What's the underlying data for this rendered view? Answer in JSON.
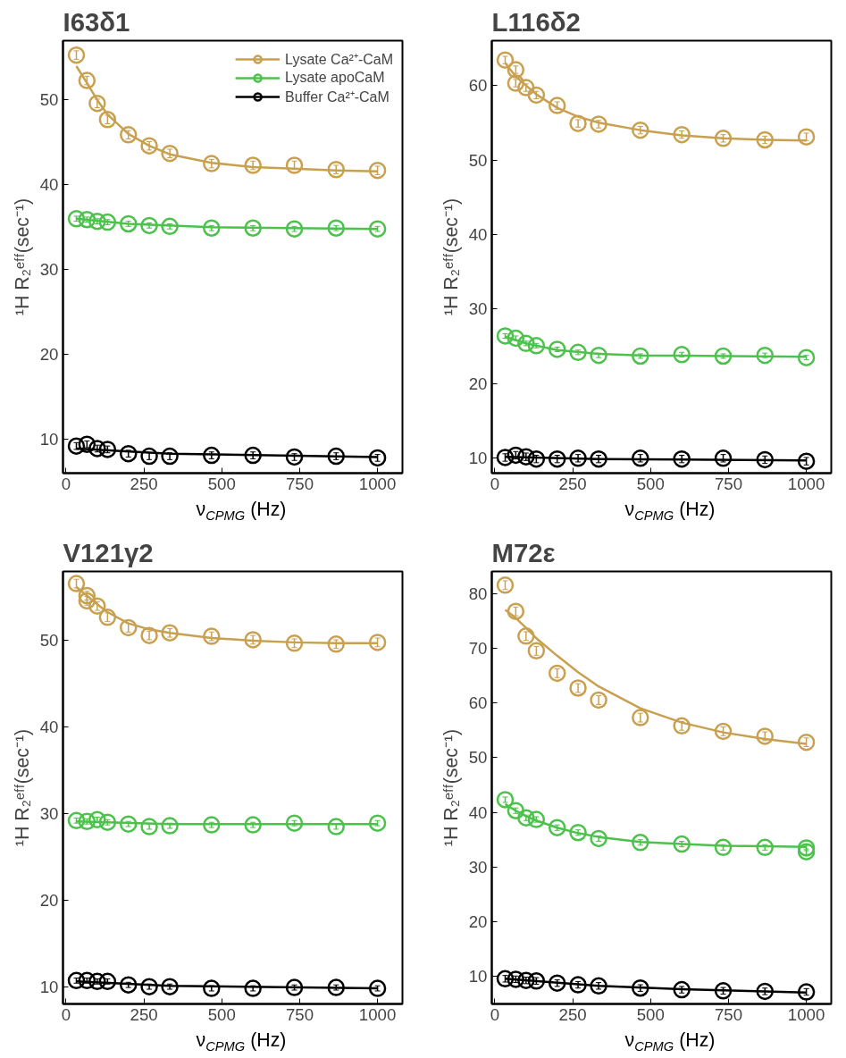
{
  "chart_data": [
    {
      "type": "scatter",
      "title": "I63δ1",
      "xlabel": "ν$_{CPMG}$ (Hz)",
      "ylabel": "¹H R₂ᵉᶠᶠ(sec⁻¹)",
      "xlim": [
        -10,
        1080
      ],
      "xticks": [
        0,
        250,
        500,
        750,
        1000
      ],
      "ylim": [
        6,
        57
      ],
      "yticks": [
        10,
        20,
        30,
        40,
        50
      ],
      "grid": false,
      "legend": "top right",
      "marker": "circle",
      "series": [
        {
          "name": "Lysate Ca²⁺-CaM",
          "color": "#c8a050",
          "x": [
            33,
            67,
            100,
            133,
            200,
            267,
            333,
            467,
            600,
            733,
            867,
            1000
          ],
          "values": [
            55.3,
            52.3,
            49.6,
            47.7,
            45.9,
            44.6,
            43.7,
            42.5,
            42.3,
            42.3,
            41.8,
            41.7
          ],
          "errors": [
            0.5,
            0.5,
            0.5,
            0.5,
            0.5,
            0.5,
            0.5,
            0.5,
            0.5,
            0.5,
            0.5,
            0.5
          ]
        },
        {
          "name": "Lysate apoCaM",
          "color": "#4cc24c",
          "x": [
            33,
            67,
            100,
            133,
            200,
            267,
            333,
            467,
            600,
            733,
            867,
            1000
          ],
          "values": [
            36.0,
            35.9,
            35.7,
            35.6,
            35.4,
            35.2,
            35.1,
            34.9,
            34.9,
            34.8,
            34.9,
            34.8
          ],
          "errors": [
            0.3,
            0.3,
            0.3,
            0.3,
            0.3,
            0.3,
            0.3,
            0.3,
            0.3,
            0.3,
            0.3,
            0.3
          ]
        },
        {
          "name": "Buffer Ca²⁺-CaM",
          "color": "#000000",
          "x": [
            33,
            67,
            100,
            133,
            200,
            267,
            333,
            467,
            600,
            733,
            867,
            1000
          ],
          "values": [
            9.2,
            9.4,
            8.9,
            8.8,
            8.3,
            8.0,
            8.0,
            8.1,
            8.1,
            7.9,
            8.0,
            7.8
          ],
          "errors": [
            0.4,
            0.4,
            0.4,
            0.4,
            0.4,
            0.4,
            0.4,
            0.4,
            0.4,
            0.4,
            0.4,
            0.4
          ]
        },
        {
          "type": "line",
          "marker": "none",
          "color": "#c8a050",
          "x": [
            33,
            67,
            100,
            133,
            200,
            267,
            333,
            467,
            600,
            733,
            867,
            1000
          ],
          "values": [
            54,
            52,
            50,
            48.3,
            46,
            44.6,
            43.6,
            42.6,
            42.1,
            41.9,
            41.7,
            41.6
          ]
        },
        {
          "type": "line",
          "marker": "none",
          "color": "#4cc24c",
          "x": [
            33,
            200,
            467,
            1000
          ],
          "values": [
            36.0,
            35.4,
            35.0,
            34.8
          ]
        },
        {
          "type": "line",
          "marker": "none",
          "color": "#000000",
          "x": [
            33,
            333,
            1000
          ],
          "values": [
            8.9,
            8.3,
            7.9
          ]
        }
      ]
    },
    {
      "type": "scatter",
      "title": "L116δ2",
      "xlabel": "ν$_{CPMG}$ (Hz)",
      "ylabel": "¹H R₂ᵉᶠᶠ(sec⁻¹)",
      "xlim": [
        -10,
        1080
      ],
      "xticks": [
        0,
        250,
        500,
        750,
        1000
      ],
      "ylim": [
        8,
        66
      ],
      "yticks": [
        10,
        20,
        30,
        40,
        50,
        60
      ],
      "grid": false,
      "marker": "circle",
      "series": [
        {
          "color": "#c8a050",
          "x": [
            33,
            67,
            67,
            100,
            133,
            200,
            267,
            333,
            467,
            600,
            733,
            867,
            1000
          ],
          "values": [
            63.4,
            62.1,
            60.3,
            59.7,
            58.7,
            57.3,
            54.9,
            54.8,
            54.0,
            53.4,
            52.9,
            52.7,
            53.1
          ],
          "errors": [
            0.5,
            0.5,
            0.5,
            0.5,
            0.5,
            0.5,
            0.5,
            0.5,
            0.5,
            0.5,
            0.5,
            0.5,
            0.5
          ]
        },
        {
          "color": "#4cc24c",
          "x": [
            33,
            67,
            100,
            133,
            200,
            267,
            333,
            467,
            600,
            733,
            867,
            1000
          ],
          "values": [
            26.4,
            26.1,
            25.4,
            25.1,
            24.6,
            24.2,
            23.8,
            23.7,
            23.9,
            23.7,
            23.8,
            23.5
          ],
          "errors": [
            0.3,
            0.3,
            0.3,
            0.3,
            0.3,
            0.3,
            0.3,
            0.3,
            0.3,
            0.3,
            0.3,
            0.3
          ]
        },
        {
          "color": "#000000",
          "x": [
            33,
            67,
            100,
            133,
            200,
            267,
            333,
            467,
            600,
            733,
            867,
            1000
          ],
          "values": [
            10.1,
            10.4,
            10.2,
            9.9,
            9.9,
            10.0,
            9.9,
            10.0,
            9.9,
            10.0,
            9.8,
            9.6
          ],
          "errors": [
            0.5,
            0.5,
            0.5,
            0.5,
            0.5,
            0.5,
            0.5,
            0.5,
            0.5,
            0.5,
            0.5,
            0.5
          ]
        },
        {
          "type": "line",
          "marker": "none",
          "color": "#c8a050",
          "x": [
            33,
            67,
            100,
            133,
            200,
            267,
            333,
            467,
            600,
            733,
            867,
            1000
          ],
          "values": [
            63,
            61.2,
            60,
            58.8,
            57,
            55.8,
            55,
            54,
            53.3,
            52.9,
            52.7,
            52.6
          ]
        },
        {
          "type": "line",
          "marker": "none",
          "color": "#4cc24c",
          "x": [
            33,
            100,
            200,
            333,
            467,
            1000
          ],
          "values": [
            26.3,
            25.4,
            24.5,
            24.0,
            23.8,
            23.6
          ]
        },
        {
          "type": "line",
          "marker": "none",
          "color": "#000000",
          "x": [
            33,
            333,
            1000
          ],
          "values": [
            10.2,
            9.9,
            9.7
          ]
        }
      ]
    },
    {
      "type": "scatter",
      "title": "V121γ2",
      "xlabel": "ν$_{CPMG}$ (Hz)",
      "ylabel": "¹H R₂ᵉᶠᶠ(sec⁻¹)",
      "xlim": [
        -10,
        1080
      ],
      "xticks": [
        0,
        250,
        500,
        750,
        1000
      ],
      "ylim": [
        8,
        58
      ],
      "yticks": [
        10,
        20,
        30,
        40,
        50
      ],
      "grid": false,
      "marker": "circle",
      "series": [
        {
          "color": "#c8a050",
          "x": [
            33,
            67,
            67,
            100,
            133,
            200,
            267,
            333,
            467,
            600,
            733,
            867,
            1000
          ],
          "values": [
            56.6,
            55.2,
            54.6,
            54.0,
            52.7,
            51.5,
            50.6,
            50.9,
            50.5,
            50.1,
            49.7,
            49.6,
            49.8
          ],
          "errors": [
            0.5,
            0.5,
            0.5,
            0.5,
            0.5,
            0.5,
            0.5,
            0.5,
            0.5,
            0.5,
            0.5,
            0.5,
            0.5
          ]
        },
        {
          "color": "#4cc24c",
          "x": [
            33,
            67,
            100,
            133,
            200,
            267,
            333,
            467,
            600,
            733,
            867,
            1000
          ],
          "values": [
            29.2,
            29.1,
            29.3,
            29.0,
            28.8,
            28.5,
            28.6,
            28.7,
            28.7,
            28.9,
            28.5,
            28.9
          ],
          "errors": [
            0.3,
            0.3,
            0.3,
            0.3,
            0.3,
            0.3,
            0.3,
            0.3,
            0.3,
            0.3,
            0.3,
            0.3
          ]
        },
        {
          "color": "#000000",
          "x": [
            33,
            67,
            100,
            133,
            200,
            267,
            333,
            467,
            600,
            733,
            867,
            1000
          ],
          "values": [
            10.7,
            10.7,
            10.6,
            10.6,
            10.2,
            10.0,
            10.0,
            9.8,
            9.8,
            9.9,
            9.9,
            9.8
          ],
          "errors": [
            0.3,
            0.3,
            0.3,
            0.3,
            0.3,
            0.3,
            0.3,
            0.3,
            0.3,
            0.3,
            0.3,
            0.3
          ]
        },
        {
          "type": "line",
          "marker": "none",
          "color": "#c8a050",
          "x": [
            33,
            67,
            100,
            133,
            200,
            267,
            333,
            467,
            600,
            733,
            867,
            1000
          ],
          "values": [
            56.2,
            55.2,
            54.2,
            53.3,
            52.0,
            51.3,
            50.9,
            50.3,
            50.0,
            49.8,
            49.7,
            49.7
          ]
        },
        {
          "type": "line",
          "marker": "none",
          "color": "#4cc24c",
          "x": [
            33,
            333,
            1000
          ],
          "values": [
            29.1,
            28.8,
            28.8
          ]
        },
        {
          "type": "line",
          "marker": "none",
          "color": "#000000",
          "x": [
            33,
            333,
            1000
          ],
          "values": [
            10.6,
            10.1,
            9.8
          ]
        }
      ]
    },
    {
      "type": "scatter",
      "title": "M72ε",
      "xlabel": "ν$_{CPMG}$ (Hz)",
      "ylabel": "¹H R₂ᵉᶠᶠ(sec⁻¹)",
      "xlim": [
        -10,
        1080
      ],
      "xticks": [
        0,
        250,
        500,
        750,
        1000
      ],
      "ylim": [
        5,
        84
      ],
      "yticks": [
        10,
        20,
        30,
        40,
        50,
        60,
        70,
        80
      ],
      "grid": false,
      "marker": "circle",
      "series": [
        {
          "color": "#c8a050",
          "x": [
            33,
            67,
            100,
            133,
            200,
            267,
            333,
            467,
            600,
            733,
            867,
            1000
          ],
          "values": [
            81.5,
            76.7,
            72.2,
            69.5,
            65.4,
            62.7,
            60.5,
            57.3,
            55.8,
            54.8,
            53.9,
            52.8
          ],
          "errors": [
            0.8,
            0.8,
            0.8,
            0.8,
            0.8,
            0.8,
            0.8,
            0.8,
            0.8,
            0.8,
            0.8,
            0.8
          ]
        },
        {
          "color": "#4cc24c",
          "x": [
            33,
            67,
            100,
            133,
            200,
            267,
            333,
            467,
            600,
            733,
            867,
            1000,
            1000
          ],
          "values": [
            42.3,
            40.3,
            39.0,
            38.7,
            37.2,
            36.3,
            35.2,
            34.5,
            34.2,
            33.6,
            33.6,
            33.5,
            32.8
          ],
          "errors": [
            0.5,
            0.5,
            0.5,
            0.5,
            0.5,
            0.5,
            0.5,
            0.5,
            0.5,
            0.5,
            0.5,
            0.5,
            0.5
          ]
        },
        {
          "color": "#000000",
          "x": [
            33,
            67,
            100,
            133,
            200,
            267,
            333,
            467,
            600,
            733,
            867,
            1000
          ],
          "values": [
            9.6,
            9.5,
            9.3,
            9.2,
            8.8,
            8.5,
            8.3,
            7.9,
            7.6,
            7.4,
            7.3,
            7.2
          ],
          "errors": [
            0.6,
            0.6,
            0.6,
            0.6,
            0.6,
            0.6,
            0.6,
            0.6,
            0.6,
            0.6,
            0.6,
            0.6
          ]
        },
        {
          "type": "line",
          "marker": "none",
          "color": "#c8a050",
          "x": [
            33,
            67,
            100,
            133,
            200,
            267,
            333,
            467,
            600,
            733,
            867,
            1000
          ],
          "values": [
            77,
            75.5,
            73.7,
            71.8,
            68.6,
            65.6,
            63,
            59,
            56.4,
            54.6,
            53.4,
            52.5
          ]
        },
        {
          "type": "line",
          "marker": "none",
          "color": "#4cc24c",
          "x": [
            33,
            67,
            100,
            133,
            200,
            267,
            333,
            467,
            600,
            733,
            867,
            1000
          ],
          "values": [
            41.5,
            40.3,
            39.3,
            38.5,
            37.2,
            36.2,
            35.5,
            34.6,
            34.2,
            33.9,
            33.8,
            33.7
          ]
        },
        {
          "type": "line",
          "marker": "none",
          "color": "#000000",
          "x": [
            33,
            333,
            600,
            1000
          ],
          "values": [
            9.6,
            8.3,
            7.7,
            7.1
          ]
        }
      ]
    }
  ]
}
